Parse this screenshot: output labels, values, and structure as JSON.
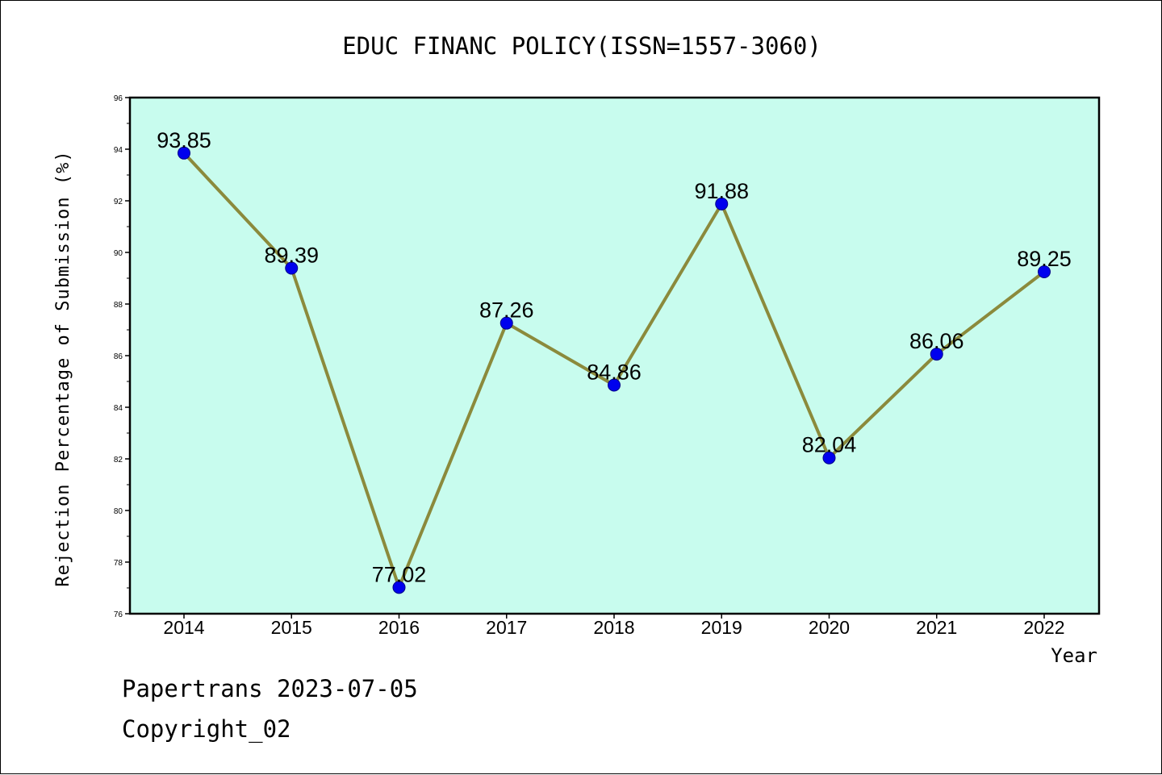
{
  "chart_data": {
    "type": "line",
    "title": "EDUC FINANC POLICY(ISSN=1557-3060)",
    "xlabel": "Year",
    "ylabel": "Rejection Percentage of Submission (%)",
    "categories": [
      "2014",
      "2015",
      "2016",
      "2017",
      "2018",
      "2019",
      "2020",
      "2021",
      "2022"
    ],
    "values": [
      93.85,
      89.39,
      77.02,
      87.26,
      84.86,
      91.88,
      82.04,
      86.06,
      89.25
    ],
    "data_labels": [
      "93.85",
      "89.39",
      "77.02",
      "87.26",
      "84.86",
      "91.88",
      "82.04",
      "86.06",
      "89.25"
    ],
    "ylim": [
      76,
      96
    ],
    "yticks": [
      76,
      78,
      80,
      82,
      84,
      86,
      88,
      90,
      92,
      94,
      96
    ],
    "grid": false,
    "legend": "none",
    "colors": {
      "plot_background": "#c8fcee",
      "line": "#8b8a3c",
      "marker": "#0000ee"
    }
  },
  "footer": {
    "line1": "Papertrans 2023-07-05",
    "line2": "Copyright_02"
  }
}
